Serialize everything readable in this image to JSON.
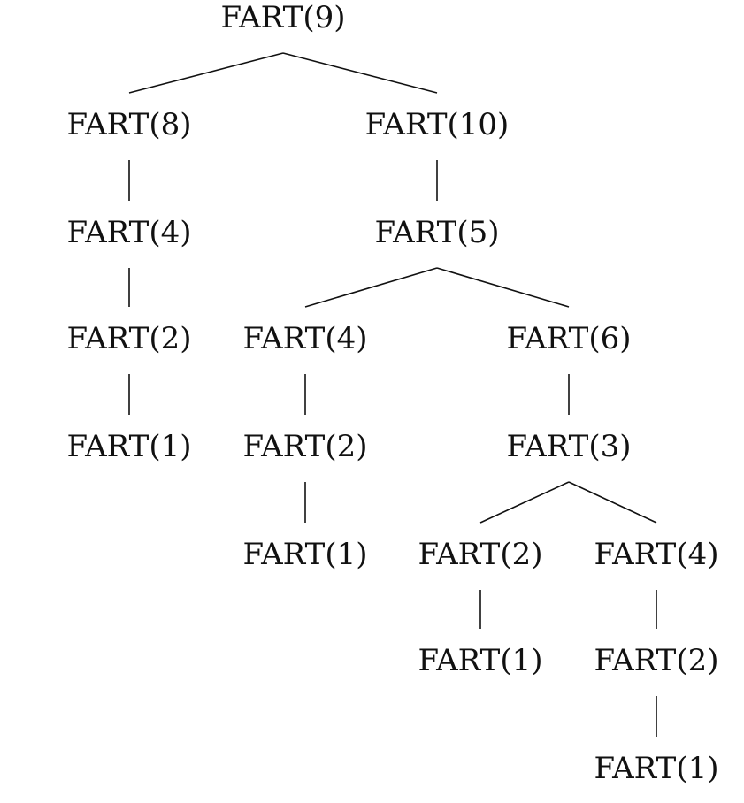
{
  "diagram": {
    "type": "recursion-tree",
    "function_name": "FART",
    "nodes": [
      {
        "id": "n9",
        "label": "FART(9)",
        "parent": null
      },
      {
        "id": "n8",
        "label": "FART(8)",
        "parent": "n9"
      },
      {
        "id": "n10",
        "label": "FART(10)",
        "parent": "n9"
      },
      {
        "id": "n4a",
        "label": "FART(4)",
        "parent": "n8"
      },
      {
        "id": "n2a",
        "label": "FART(2)",
        "parent": "n4a"
      },
      {
        "id": "n1a",
        "label": "FART(1)",
        "parent": "n2a"
      },
      {
        "id": "n5",
        "label": "FART(5)",
        "parent": "n10"
      },
      {
        "id": "n4b",
        "label": "FART(4)",
        "parent": "n5"
      },
      {
        "id": "n6",
        "label": "FART(6)",
        "parent": "n5"
      },
      {
        "id": "n2b",
        "label": "FART(2)",
        "parent": "n4b"
      },
      {
        "id": "n1b",
        "label": "FART(1)",
        "parent": "n2b"
      },
      {
        "id": "n3",
        "label": "FART(3)",
        "parent": "n6"
      },
      {
        "id": "n2c",
        "label": "FART(2)",
        "parent": "n3"
      },
      {
        "id": "n4c",
        "label": "FART(4)",
        "parent": "n3"
      },
      {
        "id": "n1c",
        "label": "FART(1)",
        "parent": "n2c"
      },
      {
        "id": "n2d",
        "label": "FART(2)",
        "parent": "n4c"
      },
      {
        "id": "n1d",
        "label": "FART(1)",
        "parent": "n2d"
      }
    ]
  }
}
